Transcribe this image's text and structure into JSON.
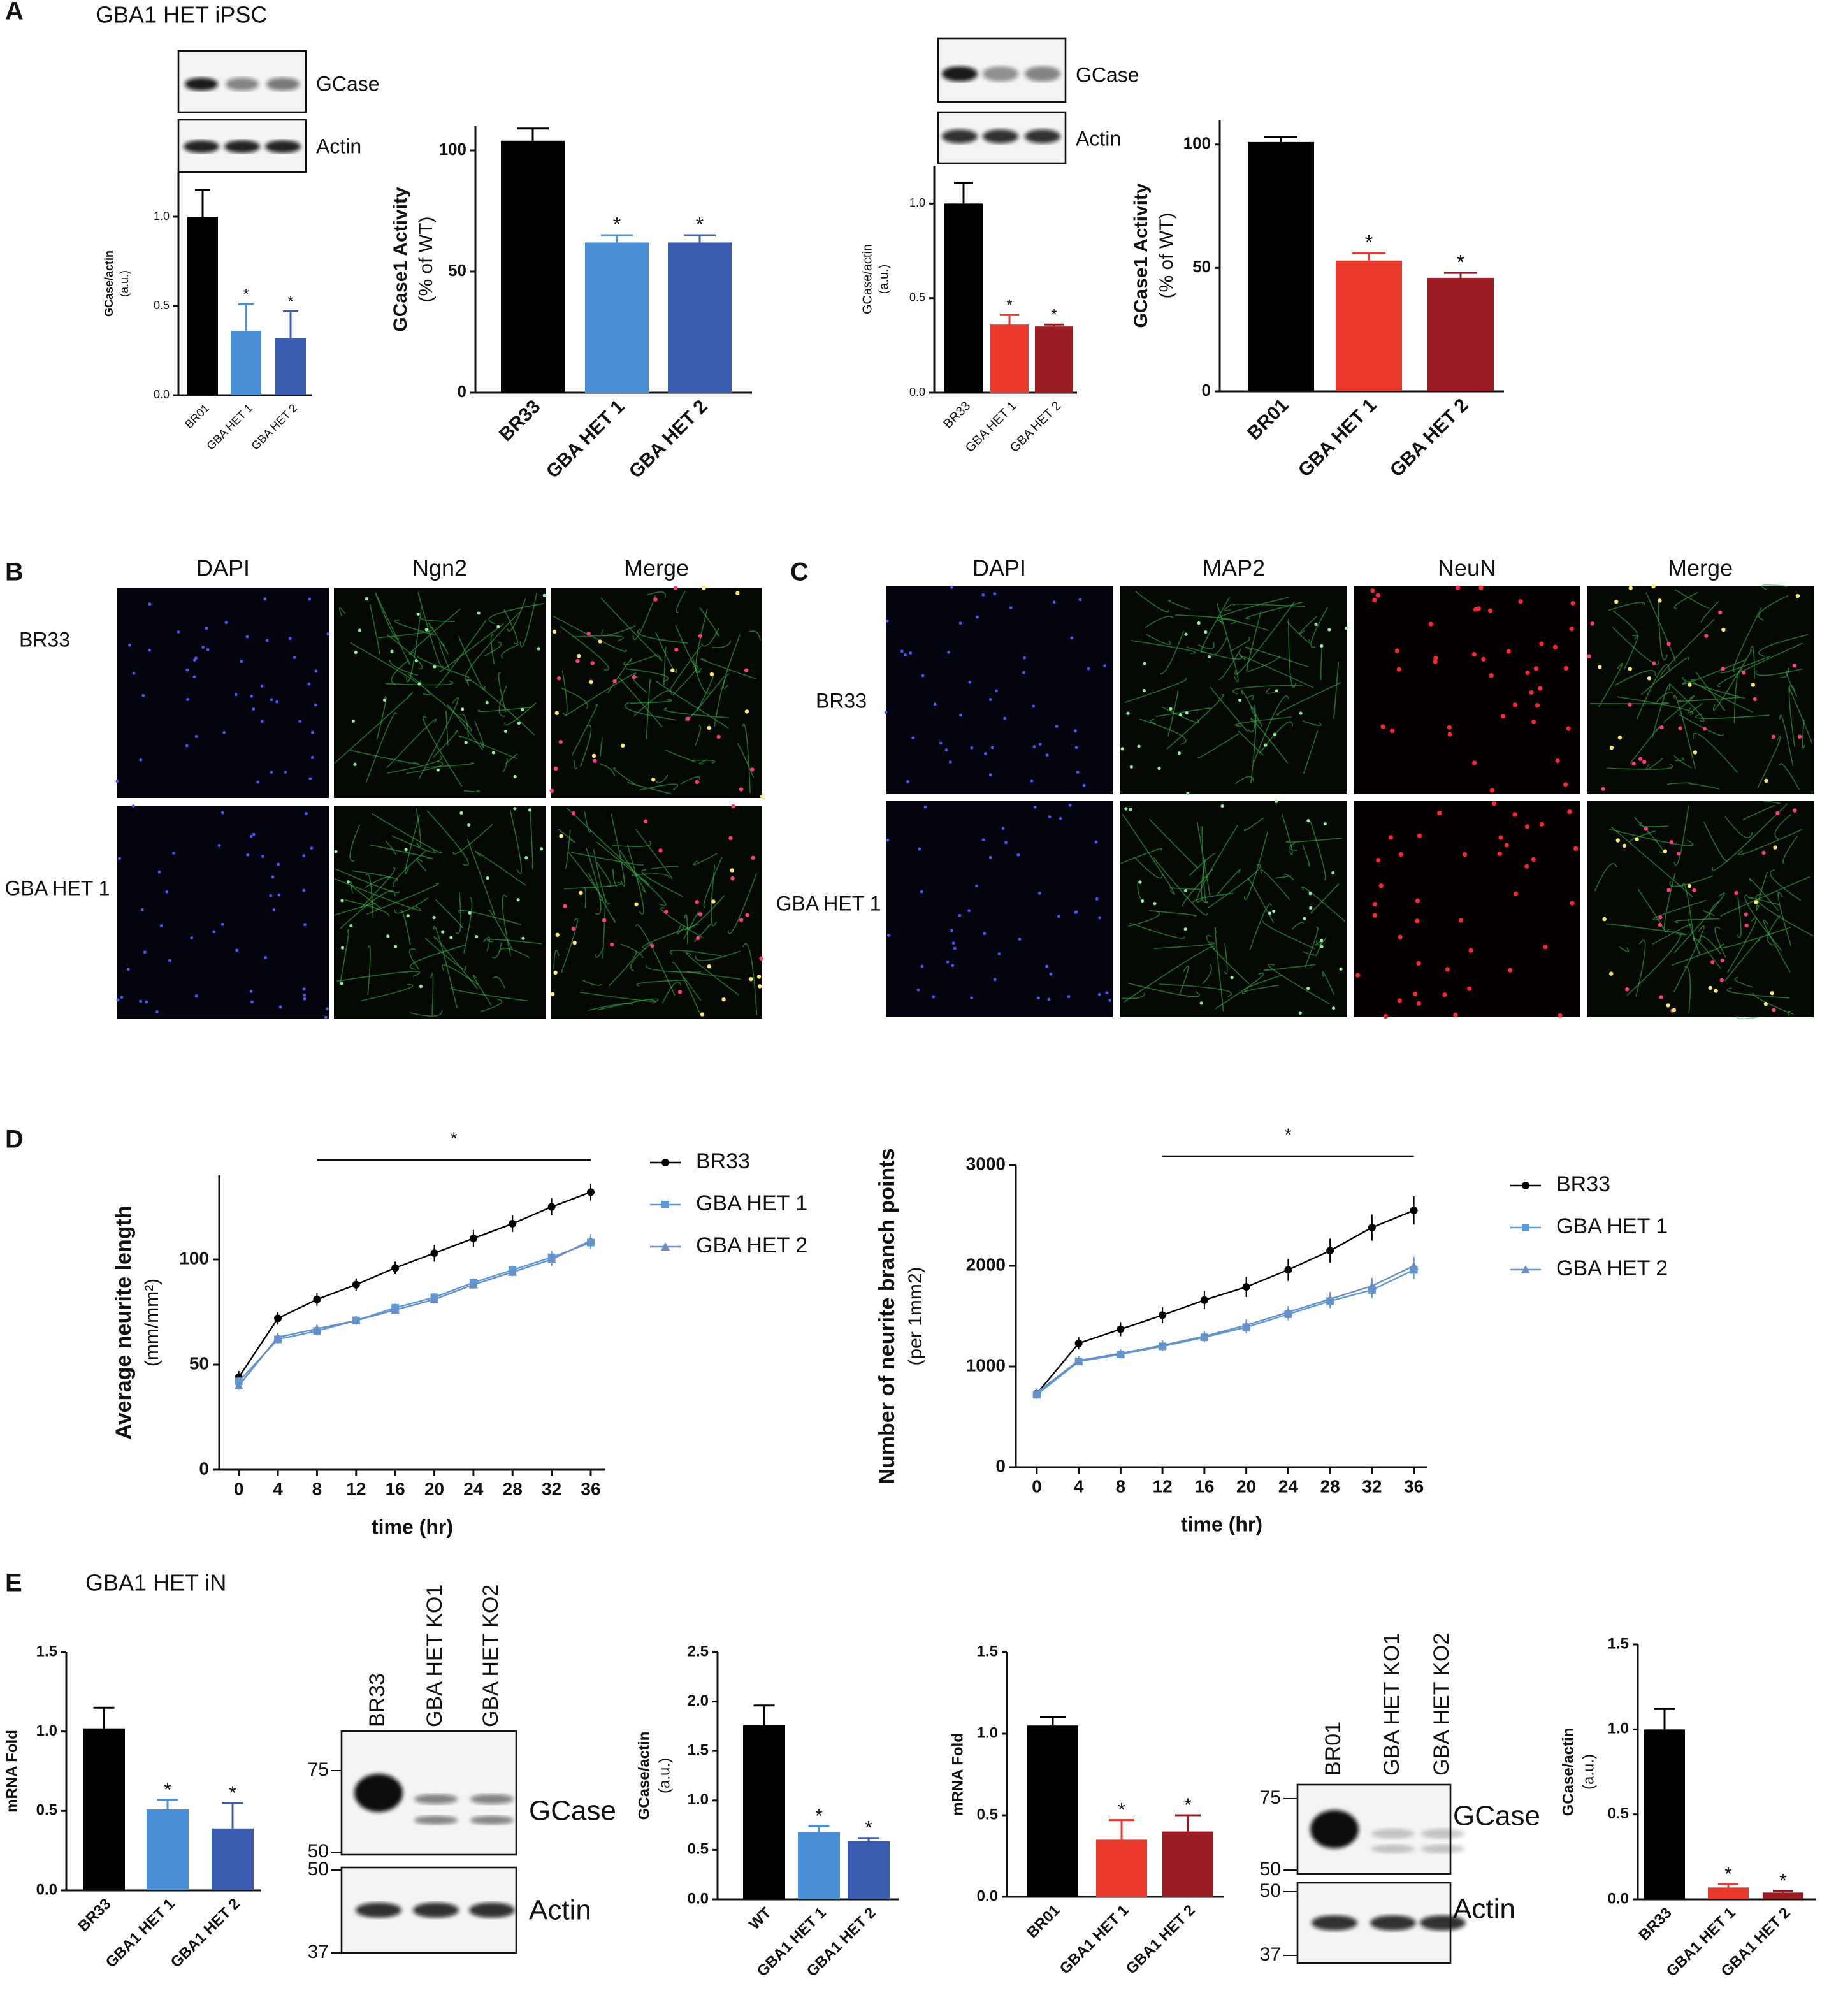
{
  "panel_labels": [
    "A",
    "B",
    "C",
    "D",
    "E"
  ],
  "panel_titles": [
    "GBA1 HET iPSC",
    "GBA1 HET iN"
  ],
  "blots": [
    {
      "bands": [
        "GCase",
        "Actin"
      ]
    },
    {
      "bands": [
        "GCase",
        "Actin"
      ]
    },
    {
      "lanes": [
        "BR33",
        "GBA HET KO1",
        "GBA HET KO2"
      ],
      "markers": [
        75,
        50,
        50,
        37
      ],
      "bands": [
        "GCase",
        "Actin"
      ]
    },
    {
      "lanes": [
        "BR01",
        "GBA HET KO1",
        "GBA HET KO2"
      ],
      "markers": [
        75,
        50,
        50,
        37
      ],
      "bands": [
        "GCase",
        "Actin"
      ]
    }
  ],
  "micrographs": [
    {
      "channels": [
        "DAPI",
        "Ngn2",
        "Merge"
      ],
      "rows": [
        "BR33",
        "GBA HET 1"
      ]
    },
    {
      "channels": [
        "DAPI",
        "MAP2",
        "NeuN",
        "Merge"
      ],
      "rows": [
        "BR33",
        "GBA HET 1"
      ]
    }
  ],
  "chart_data": [
    {
      "type": "bar",
      "ylabel": [
        "GCase/actin",
        "(a.u.)"
      ],
      "categories": [
        "BR01",
        "GBA HET 1",
        "GBA HET 2"
      ],
      "values": [
        1.0,
        0.36,
        0.32
      ],
      "errors": [
        0.15,
        0.15,
        0.15
      ],
      "colors": [
        "#000000",
        "#4a90d9",
        "#3a5cb0"
      ],
      "significance": [
        null,
        "*",
        "*"
      ],
      "ylim": [
        0,
        1.25
      ],
      "yticks": [
        {
          "value": 0,
          "label": "0.0"
        },
        {
          "value": 0.5,
          "label": "0.5"
        },
        {
          "value": 1,
          "label": "1.0"
        }
      ]
    },
    {
      "type": "bar",
      "ylabel": [
        "GCase1 Activity",
        "(% of WT)"
      ],
      "categories": [
        "BR33",
        "GBA HET 1",
        "GBA HET 2"
      ],
      "values": [
        104,
        62,
        62
      ],
      "errors": [
        5,
        3,
        3
      ],
      "colors": [
        "#000000",
        "#4a90d9",
        "#3a5cb0"
      ],
      "significance": [
        null,
        "*",
        "*"
      ],
      "ylim": [
        0,
        110
      ],
      "yticks": [
        0,
        50,
        100
      ]
    },
    {
      "type": "bar",
      "ylabel": [
        "GCase/actin",
        "(a.u.)"
      ],
      "categories": [
        "BR33",
        "GBA HET 1",
        "GBA HET 2"
      ],
      "values": [
        1.0,
        0.36,
        0.35
      ],
      "errors": [
        0.11,
        0.05,
        0.01
      ],
      "colors": [
        "#000000",
        "#e8392b",
        "#9b1c20"
      ],
      "significance": [
        null,
        "*",
        "*"
      ],
      "ylim": [
        0,
        1.2
      ],
      "yticks": [
        {
          "value": 0,
          "label": "0.0"
        },
        {
          "value": 0.5,
          "label": "0.5"
        },
        {
          "value": 1,
          "label": "1.0"
        }
      ]
    },
    {
      "type": "bar",
      "ylabel": [
        "GCase1 Activity",
        "(% of WT)"
      ],
      "categories": [
        "BR01",
        "GBA HET 1",
        "GBA HET 2"
      ],
      "values": [
        101,
        53,
        46
      ],
      "errors": [
        2,
        3,
        2
      ],
      "colors": [
        "#000000",
        "#e8392b",
        "#9b1c20"
      ],
      "significance": [
        null,
        "*",
        "*"
      ],
      "ylim": [
        0,
        110
      ],
      "yticks": [
        0,
        50,
        100
      ]
    },
    {
      "type": "line",
      "ylabel": [
        "Average neurite length",
        "(mm/mm²)"
      ],
      "xlabel": "time (hr)",
      "x": [
        0,
        4,
        8,
        12,
        16,
        20,
        24,
        28,
        32,
        36
      ],
      "xlim": [
        -2,
        37.5
      ],
      "xticks": [
        0,
        4,
        8,
        12,
        16,
        20,
        24,
        28,
        32,
        36
      ],
      "ylim": [
        0,
        140
      ],
      "yticks": [
        0,
        50,
        100
      ],
      "significance": {
        "label": "*",
        "from": 8,
        "to": 36
      },
      "series": [
        {
          "name": "BR33",
          "color": "#000000",
          "marker": "circle",
          "values": [
            44,
            72,
            81,
            88,
            96,
            103,
            110,
            117,
            125,
            132
          ],
          "errors": [
            3,
            3,
            3,
            3,
            3,
            4,
            4,
            4,
            4,
            4
          ]
        },
        {
          "name": "GBA HET 1",
          "color": "#5b9bd5",
          "marker": "square",
          "values": [
            42,
            62,
            66,
            71,
            77,
            82,
            89,
            95,
            101,
            108
          ],
          "errors": [
            2,
            2,
            2,
            2,
            2,
            2,
            2,
            2,
            3,
            3
          ]
        },
        {
          "name": "GBA HET 2",
          "color": "#6a8fc7",
          "marker": "triangle",
          "values": [
            40,
            63,
            67,
            71,
            76,
            81,
            88,
            94,
            100,
            109
          ],
          "errors": [
            2,
            2,
            2,
            2,
            2,
            2,
            2,
            2,
            3,
            3
          ]
        }
      ]
    },
    {
      "type": "line",
      "ylabel": [
        "Number of neurite branch points",
        "(per 1mm2)"
      ],
      "xlabel": "time (hr)",
      "x": [
        0,
        4,
        8,
        12,
        16,
        20,
        24,
        28,
        32,
        36
      ],
      "xlim": [
        -2,
        37.3
      ],
      "xticks": [
        0,
        4,
        8,
        12,
        16,
        20,
        24,
        28,
        32,
        36
      ],
      "ylim": [
        0,
        3000
      ],
      "yticks": [
        0,
        1000,
        2000,
        3000
      ],
      "significance": {
        "label": "*",
        "from": 12,
        "to": 36
      },
      "series": [
        {
          "name": "BR33",
          "color": "#000000",
          "marker": "circle",
          "values": [
            730,
            1230,
            1370,
            1510,
            1660,
            1790,
            1960,
            2150,
            2380,
            2550
          ],
          "errors": [
            50,
            60,
            70,
            80,
            90,
            100,
            110,
            120,
            130,
            140
          ]
        },
        {
          "name": "GBA HET 1",
          "color": "#5b9bd5",
          "marker": "square",
          "values": [
            720,
            1050,
            1120,
            1200,
            1290,
            1390,
            1520,
            1650,
            1760,
            1960
          ],
          "errors": [
            40,
            40,
            40,
            50,
            50,
            60,
            60,
            70,
            80,
            90
          ]
        },
        {
          "name": "GBA HET 2",
          "color": "#6a8fc7",
          "marker": "triangle",
          "values": [
            740,
            1060,
            1130,
            1210,
            1300,
            1410,
            1540,
            1670,
            1800,
            2000
          ],
          "errors": [
            40,
            40,
            40,
            50,
            50,
            60,
            60,
            70,
            80,
            90
          ]
        }
      ]
    },
    {
      "type": "bar",
      "ylabel": [
        "mRNA Fold"
      ],
      "categories": [
        "BR33",
        "GBA1 HET 1",
        "GBA1 HET 2"
      ],
      "values": [
        1.02,
        0.51,
        0.39
      ],
      "errors": [
        0.13,
        0.06,
        0.16
      ],
      "colors": [
        "#000000",
        "#4a90d9",
        "#3a5cb0"
      ],
      "significance": [
        null,
        "*",
        "*"
      ],
      "ylim": [
        0,
        1.5
      ],
      "yticks": [
        {
          "value": 0,
          "label": "0.0"
        },
        {
          "value": 0.5,
          "label": "0.5"
        },
        {
          "value": 1,
          "label": "1.0"
        },
        {
          "value": 1.5,
          "label": "1.5"
        }
      ]
    },
    {
      "type": "bar",
      "ylabel": [
        "GCase/actin",
        "(a.u.)"
      ],
      "categories": [
        "WT",
        "GBA1 HET 1",
        "GBA1 HET 2"
      ],
      "values": [
        1.76,
        0.68,
        0.59
      ],
      "errors": [
        0.2,
        0.06,
        0.03
      ],
      "colors": [
        "#000000",
        "#4a90d9",
        "#3a5cb0"
      ],
      "significance": [
        null,
        "*",
        "*"
      ],
      "ylim": [
        0,
        2.5
      ],
      "yticks": [
        {
          "value": 0,
          "label": "0.0"
        },
        {
          "value": 0.5,
          "label": "0.5"
        },
        {
          "value": 1,
          "label": "1.0"
        },
        {
          "value": 1.5,
          "label": "1.5"
        },
        {
          "value": 2,
          "label": "2.0"
        },
        {
          "value": 2.5,
          "label": "2.5"
        }
      ]
    },
    {
      "type": "bar",
      "ylabel": [
        "mRNA Fold"
      ],
      "categories": [
        "BR01",
        "GBA1 HET 1",
        "GBA1 HET 2"
      ],
      "values": [
        1.05,
        0.35,
        0.4
      ],
      "errors": [
        0.05,
        0.12,
        0.1
      ],
      "colors": [
        "#000000",
        "#e8392b",
        "#9b1c20"
      ],
      "significance": [
        null,
        "*",
        "*"
      ],
      "ylim": [
        0,
        1.5
      ],
      "yticks": [
        {
          "value": 0,
          "label": "0.0"
        },
        {
          "value": 0.5,
          "label": "0.5"
        },
        {
          "value": 1,
          "label": "1.0"
        },
        {
          "value": 1.5,
          "label": "1.5"
        }
      ]
    },
    {
      "type": "bar",
      "ylabel": [
        "GCase/actin",
        "(a.u.)"
      ],
      "categories": [
        "BR33",
        "GBA1 HET 1",
        "GBA1 HET 2"
      ],
      "values": [
        1.0,
        0.07,
        0.04
      ],
      "errors": [
        0.12,
        0.02,
        0.01
      ],
      "colors": [
        "#000000",
        "#e8392b",
        "#9b1c20"
      ],
      "significance": [
        null,
        "*",
        "*"
      ],
      "ylim": [
        0,
        1.5
      ],
      "yticks": [
        {
          "value": 0,
          "label": "0.0"
        },
        {
          "value": 0.5,
          "label": "0.5"
        },
        {
          "value": 1,
          "label": "1.0"
        },
        {
          "value": 1.5,
          "label": "1.5"
        }
      ]
    }
  ]
}
